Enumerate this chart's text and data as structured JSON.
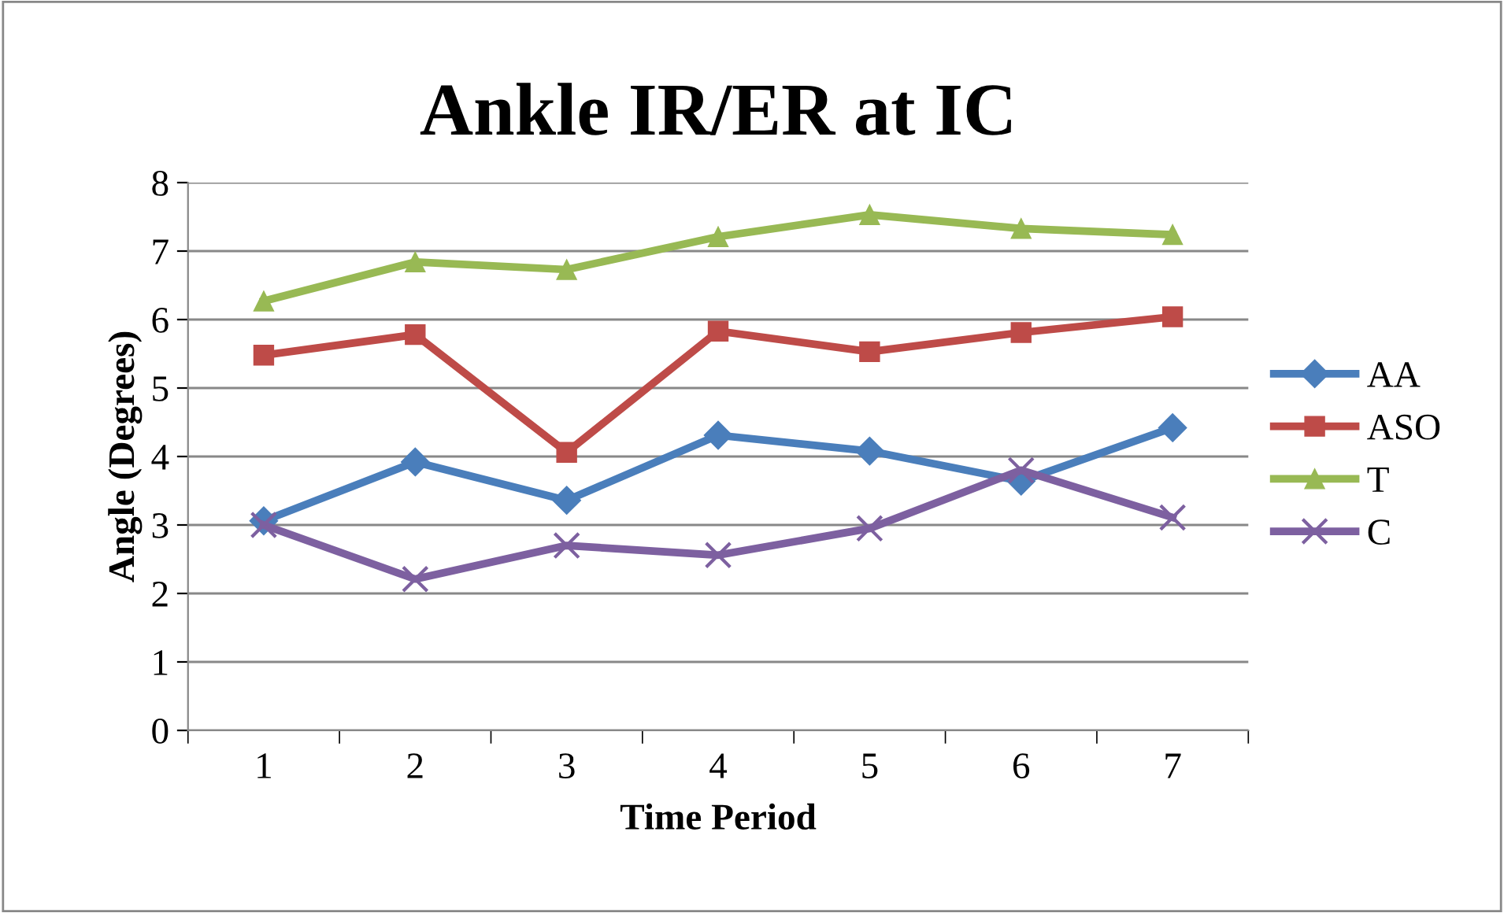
{
  "chart_data": {
    "type": "line",
    "title": "Ankle IR/ER at IC",
    "xlabel": "Time Period",
    "ylabel": "Angle (Degrees)",
    "categories": [
      "1",
      "2",
      "3",
      "4",
      "5",
      "6",
      "7"
    ],
    "series": [
      {
        "name": "AA",
        "color": "#4a7ebb",
        "marker": "diamond",
        "values": [
          3.06,
          3.92,
          3.36,
          4.31,
          4.08,
          3.64,
          4.42
        ]
      },
      {
        "name": "ASO",
        "color": "#be4b48",
        "marker": "square",
        "values": [
          5.48,
          5.78,
          4.06,
          5.83,
          5.53,
          5.81,
          6.04
        ]
      },
      {
        "name": "T",
        "color": "#98b954",
        "marker": "triangle",
        "values": [
          6.27,
          6.84,
          6.73,
          7.21,
          7.53,
          7.33,
          7.24
        ]
      },
      {
        "name": "C",
        "color": "#7d60a0",
        "marker": "cross",
        "values": [
          3.0,
          2.21,
          2.7,
          2.56,
          2.95,
          3.8,
          3.11
        ]
      }
    ],
    "ylim": [
      0,
      8
    ],
    "yticks": [
      0,
      1,
      2,
      3,
      4,
      5,
      6,
      7,
      8
    ],
    "grid": "y",
    "legend": "right",
    "line_style": "solid"
  }
}
